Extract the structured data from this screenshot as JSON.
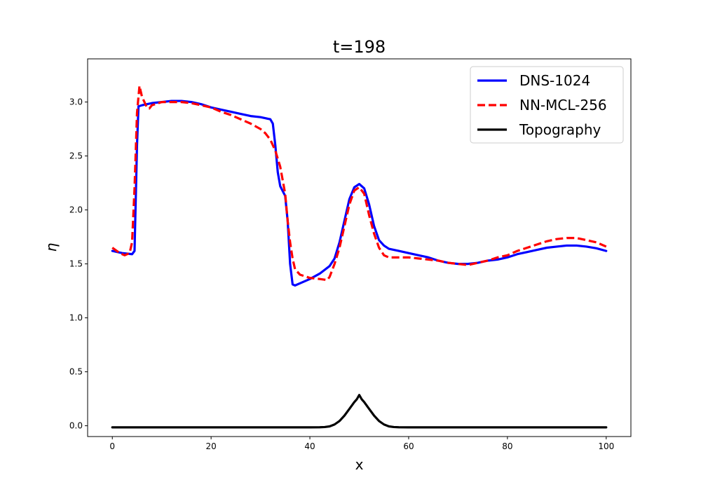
{
  "chart_data": {
    "type": "line",
    "title": "t=198",
    "xlabel": "x",
    "ylabel": "η",
    "xlim": [
      -5,
      105
    ],
    "ylim": [
      -0.1,
      3.4
    ],
    "xticks": [
      0,
      20,
      40,
      60,
      80,
      100
    ],
    "yticks": [
      0.0,
      0.5,
      1.0,
      1.5,
      2.0,
      2.5,
      3.0
    ],
    "xtick_labels": [
      "0",
      "20",
      "40",
      "60",
      "80",
      "100"
    ],
    "ytick_labels": [
      "0.0",
      "0.5",
      "1.0",
      "1.5",
      "2.0",
      "2.5",
      "3.0"
    ],
    "grid": false,
    "legend_position": "top-right",
    "series": [
      {
        "name": "DNS-1024",
        "color": "#0000ff",
        "style": "solid",
        "points": [
          [
            0,
            1.62
          ],
          [
            2,
            1.6
          ],
          [
            4,
            1.59
          ],
          [
            4.5,
            1.62
          ],
          [
            5,
            2.6
          ],
          [
            5.3,
            2.96
          ],
          [
            6,
            2.97
          ],
          [
            8,
            2.99
          ],
          [
            10,
            3.0
          ],
          [
            12,
            3.01
          ],
          [
            14,
            3.01
          ],
          [
            16,
            3.0
          ],
          [
            18,
            2.98
          ],
          [
            20,
            2.95
          ],
          [
            22,
            2.93
          ],
          [
            24,
            2.91
          ],
          [
            26,
            2.89
          ],
          [
            28,
            2.87
          ],
          [
            30,
            2.86
          ],
          [
            31,
            2.85
          ],
          [
            32,
            2.84
          ],
          [
            32.5,
            2.8
          ],
          [
            33,
            2.6
          ],
          [
            33.5,
            2.35
          ],
          [
            34,
            2.22
          ],
          [
            35,
            2.13
          ],
          [
            35.5,
            1.9
          ],
          [
            36,
            1.5
          ],
          [
            36.5,
            1.31
          ],
          [
            37,
            1.3
          ],
          [
            38,
            1.32
          ],
          [
            40,
            1.36
          ],
          [
            42,
            1.41
          ],
          [
            44,
            1.48
          ],
          [
            45,
            1.55
          ],
          [
            46,
            1.7
          ],
          [
            47,
            1.9
          ],
          [
            48,
            2.1
          ],
          [
            49,
            2.21
          ],
          [
            50,
            2.24
          ],
          [
            51,
            2.2
          ],
          [
            52,
            2.05
          ],
          [
            53,
            1.85
          ],
          [
            54,
            1.72
          ],
          [
            55,
            1.67
          ],
          [
            56,
            1.64
          ],
          [
            58,
            1.62
          ],
          [
            60,
            1.6
          ],
          [
            62,
            1.58
          ],
          [
            64,
            1.56
          ],
          [
            66,
            1.53
          ],
          [
            68,
            1.51
          ],
          [
            70,
            1.5
          ],
          [
            72,
            1.5
          ],
          [
            74,
            1.51
          ],
          [
            76,
            1.53
          ],
          [
            78,
            1.54
          ],
          [
            80,
            1.56
          ],
          [
            82,
            1.59
          ],
          [
            84,
            1.61
          ],
          [
            86,
            1.63
          ],
          [
            88,
            1.65
          ],
          [
            90,
            1.66
          ],
          [
            92,
            1.67
          ],
          [
            94,
            1.67
          ],
          [
            96,
            1.66
          ],
          [
            98,
            1.645
          ],
          [
            100,
            1.62
          ]
        ]
      },
      {
        "name": "NN-MCL-256",
        "color": "#ff0000",
        "style": "dashed",
        "points": [
          [
            0,
            1.65
          ],
          [
            1.5,
            1.6
          ],
          [
            2.5,
            1.58
          ],
          [
            3.5,
            1.6
          ],
          [
            4,
            1.7
          ],
          [
            4.5,
            2.2
          ],
          [
            5,
            2.9
          ],
          [
            5.5,
            3.15
          ],
          [
            6,
            3.05
          ],
          [
            6.5,
            3.0
          ],
          [
            7,
            2.95
          ],
          [
            7.5,
            2.94
          ],
          [
            8,
            2.97
          ],
          [
            10,
            3.0
          ],
          [
            12,
            3.0
          ],
          [
            14,
            3.0
          ],
          [
            16,
            2.99
          ],
          [
            18,
            2.97
          ],
          [
            20,
            2.95
          ],
          [
            22,
            2.91
          ],
          [
            24,
            2.88
          ],
          [
            26,
            2.84
          ],
          [
            28,
            2.8
          ],
          [
            30,
            2.75
          ],
          [
            31,
            2.71
          ],
          [
            32,
            2.65
          ],
          [
            33,
            2.55
          ],
          [
            34,
            2.4
          ],
          [
            35,
            2.15
          ],
          [
            35.5,
            1.9
          ],
          [
            36,
            1.7
          ],
          [
            36.5,
            1.55
          ],
          [
            37,
            1.45
          ],
          [
            38,
            1.4
          ],
          [
            40,
            1.37
          ],
          [
            42,
            1.36
          ],
          [
            43.5,
            1.35
          ],
          [
            44,
            1.38
          ],
          [
            45,
            1.5
          ],
          [
            46,
            1.65
          ],
          [
            47,
            1.85
          ],
          [
            48,
            2.05
          ],
          [
            49,
            2.18
          ],
          [
            50,
            2.21
          ],
          [
            51,
            2.15
          ],
          [
            52,
            1.95
          ],
          [
            53,
            1.78
          ],
          [
            54,
            1.65
          ],
          [
            55,
            1.58
          ],
          [
            56,
            1.56
          ],
          [
            58,
            1.56
          ],
          [
            60,
            1.56
          ],
          [
            62,
            1.55
          ],
          [
            64,
            1.54
          ],
          [
            66,
            1.53
          ],
          [
            68,
            1.51
          ],
          [
            70,
            1.5
          ],
          [
            72,
            1.49
          ],
          [
            74,
            1.51
          ],
          [
            76,
            1.53
          ],
          [
            78,
            1.56
          ],
          [
            80,
            1.58
          ],
          [
            82,
            1.62
          ],
          [
            84,
            1.65
          ],
          [
            86,
            1.68
          ],
          [
            88,
            1.71
          ],
          [
            90,
            1.73
          ],
          [
            92,
            1.74
          ],
          [
            94,
            1.74
          ],
          [
            96,
            1.72
          ],
          [
            98,
            1.7
          ],
          [
            100,
            1.66
          ]
        ]
      },
      {
        "name": "Topography",
        "color": "#000000",
        "style": "solid",
        "points": [
          [
            0,
            -0.015
          ],
          [
            40,
            -0.015
          ],
          [
            42,
            -0.014
          ],
          [
            43,
            -0.012
          ],
          [
            44,
            -0.006
          ],
          [
            45,
            0.012
          ],
          [
            46,
            0.044
          ],
          [
            47,
            0.094
          ],
          [
            48,
            0.156
          ],
          [
            49,
            0.219
          ],
          [
            49.5,
            0.245
          ],
          [
            50,
            0.285
          ],
          [
            50.5,
            0.245
          ],
          [
            51,
            0.219
          ],
          [
            52,
            0.156
          ],
          [
            53,
            0.094
          ],
          [
            54,
            0.044
          ],
          [
            55,
            0.012
          ],
          [
            56,
            -0.006
          ],
          [
            57,
            -0.012
          ],
          [
            58,
            -0.014
          ],
          [
            60,
            -0.015
          ],
          [
            100,
            -0.015
          ]
        ]
      }
    ]
  }
}
